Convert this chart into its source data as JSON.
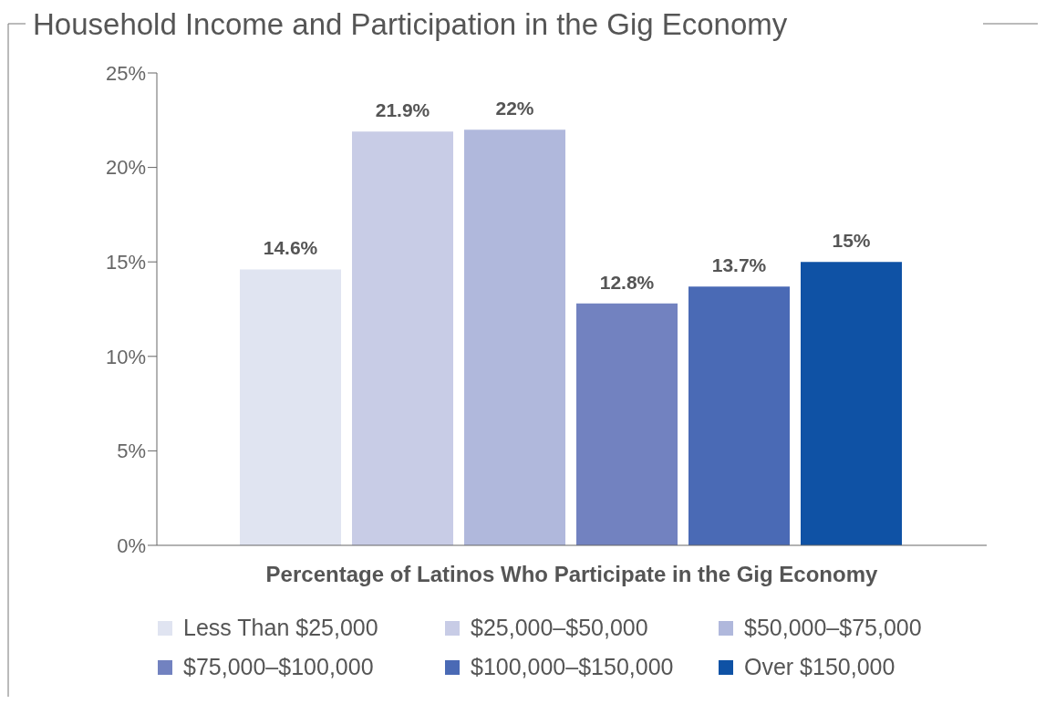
{
  "chart_data": {
    "type": "bar",
    "title": "Household Income and Participation in the Gig Economy",
    "xlabel": "Percentage of Latinos Who Participate in the Gig Economy",
    "categories": [
      null
    ],
    "series": [
      {
        "name": "Less Than $25,000",
        "color": "#e0e4f1",
        "values": [
          14.6
        ],
        "value_labels": [
          "14.6%"
        ]
      },
      {
        "name": "$25,000–$50,000",
        "color": "#c8cce6",
        "values": [
          21.9
        ],
        "value_labels": [
          "21.9%"
        ]
      },
      {
        "name": "$50,000–$75,000",
        "color": "#b0b8dc",
        "values": [
          22
        ],
        "value_labels": [
          "22%"
        ]
      },
      {
        "name": "$75,000–$100,000",
        "color": "#7282c0",
        "values": [
          12.8
        ],
        "value_labels": [
          "12.8%"
        ]
      },
      {
        "name": "$100,000–$150,000",
        "color": "#4a6ab5",
        "values": [
          13.7
        ],
        "value_labels": [
          "13.7%"
        ]
      },
      {
        "name": "Over $150,000",
        "color": "#0f52a5",
        "values": [
          15
        ],
        "value_labels": [
          "15%"
        ]
      }
    ],
    "ylim": [
      0,
      25
    ],
    "yticks": [
      {
        "value": 0,
        "label": "0%"
      },
      {
        "value": 5,
        "label": "5%"
      },
      {
        "value": 10,
        "label": "10%"
      },
      {
        "value": 15,
        "label": "15%"
      },
      {
        "value": 20,
        "label": "20%"
      },
      {
        "value": 25,
        "label": "25%"
      }
    ],
    "grid": false,
    "legend": "bottom"
  }
}
